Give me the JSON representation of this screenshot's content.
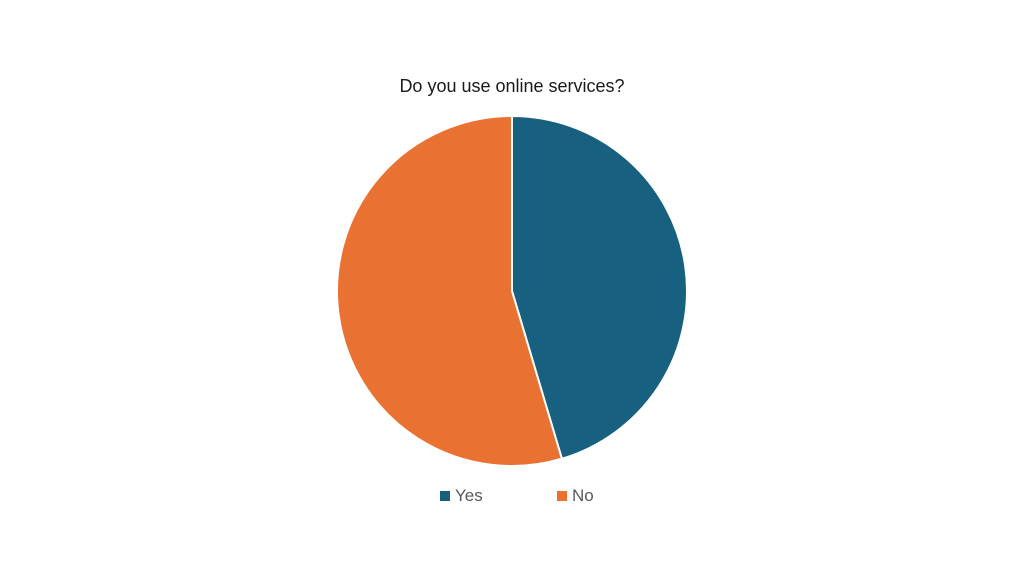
{
  "chart_data": {
    "type": "pie",
    "title": "Do you use online services?",
    "categories": [
      "Yes",
      "No"
    ],
    "values": [
      45.4,
      54.6
    ],
    "colors": [
      "#17607F",
      "#E97132"
    ],
    "start_angle_deg": 0,
    "direction": "clockwise",
    "legend_position": "bottom"
  }
}
